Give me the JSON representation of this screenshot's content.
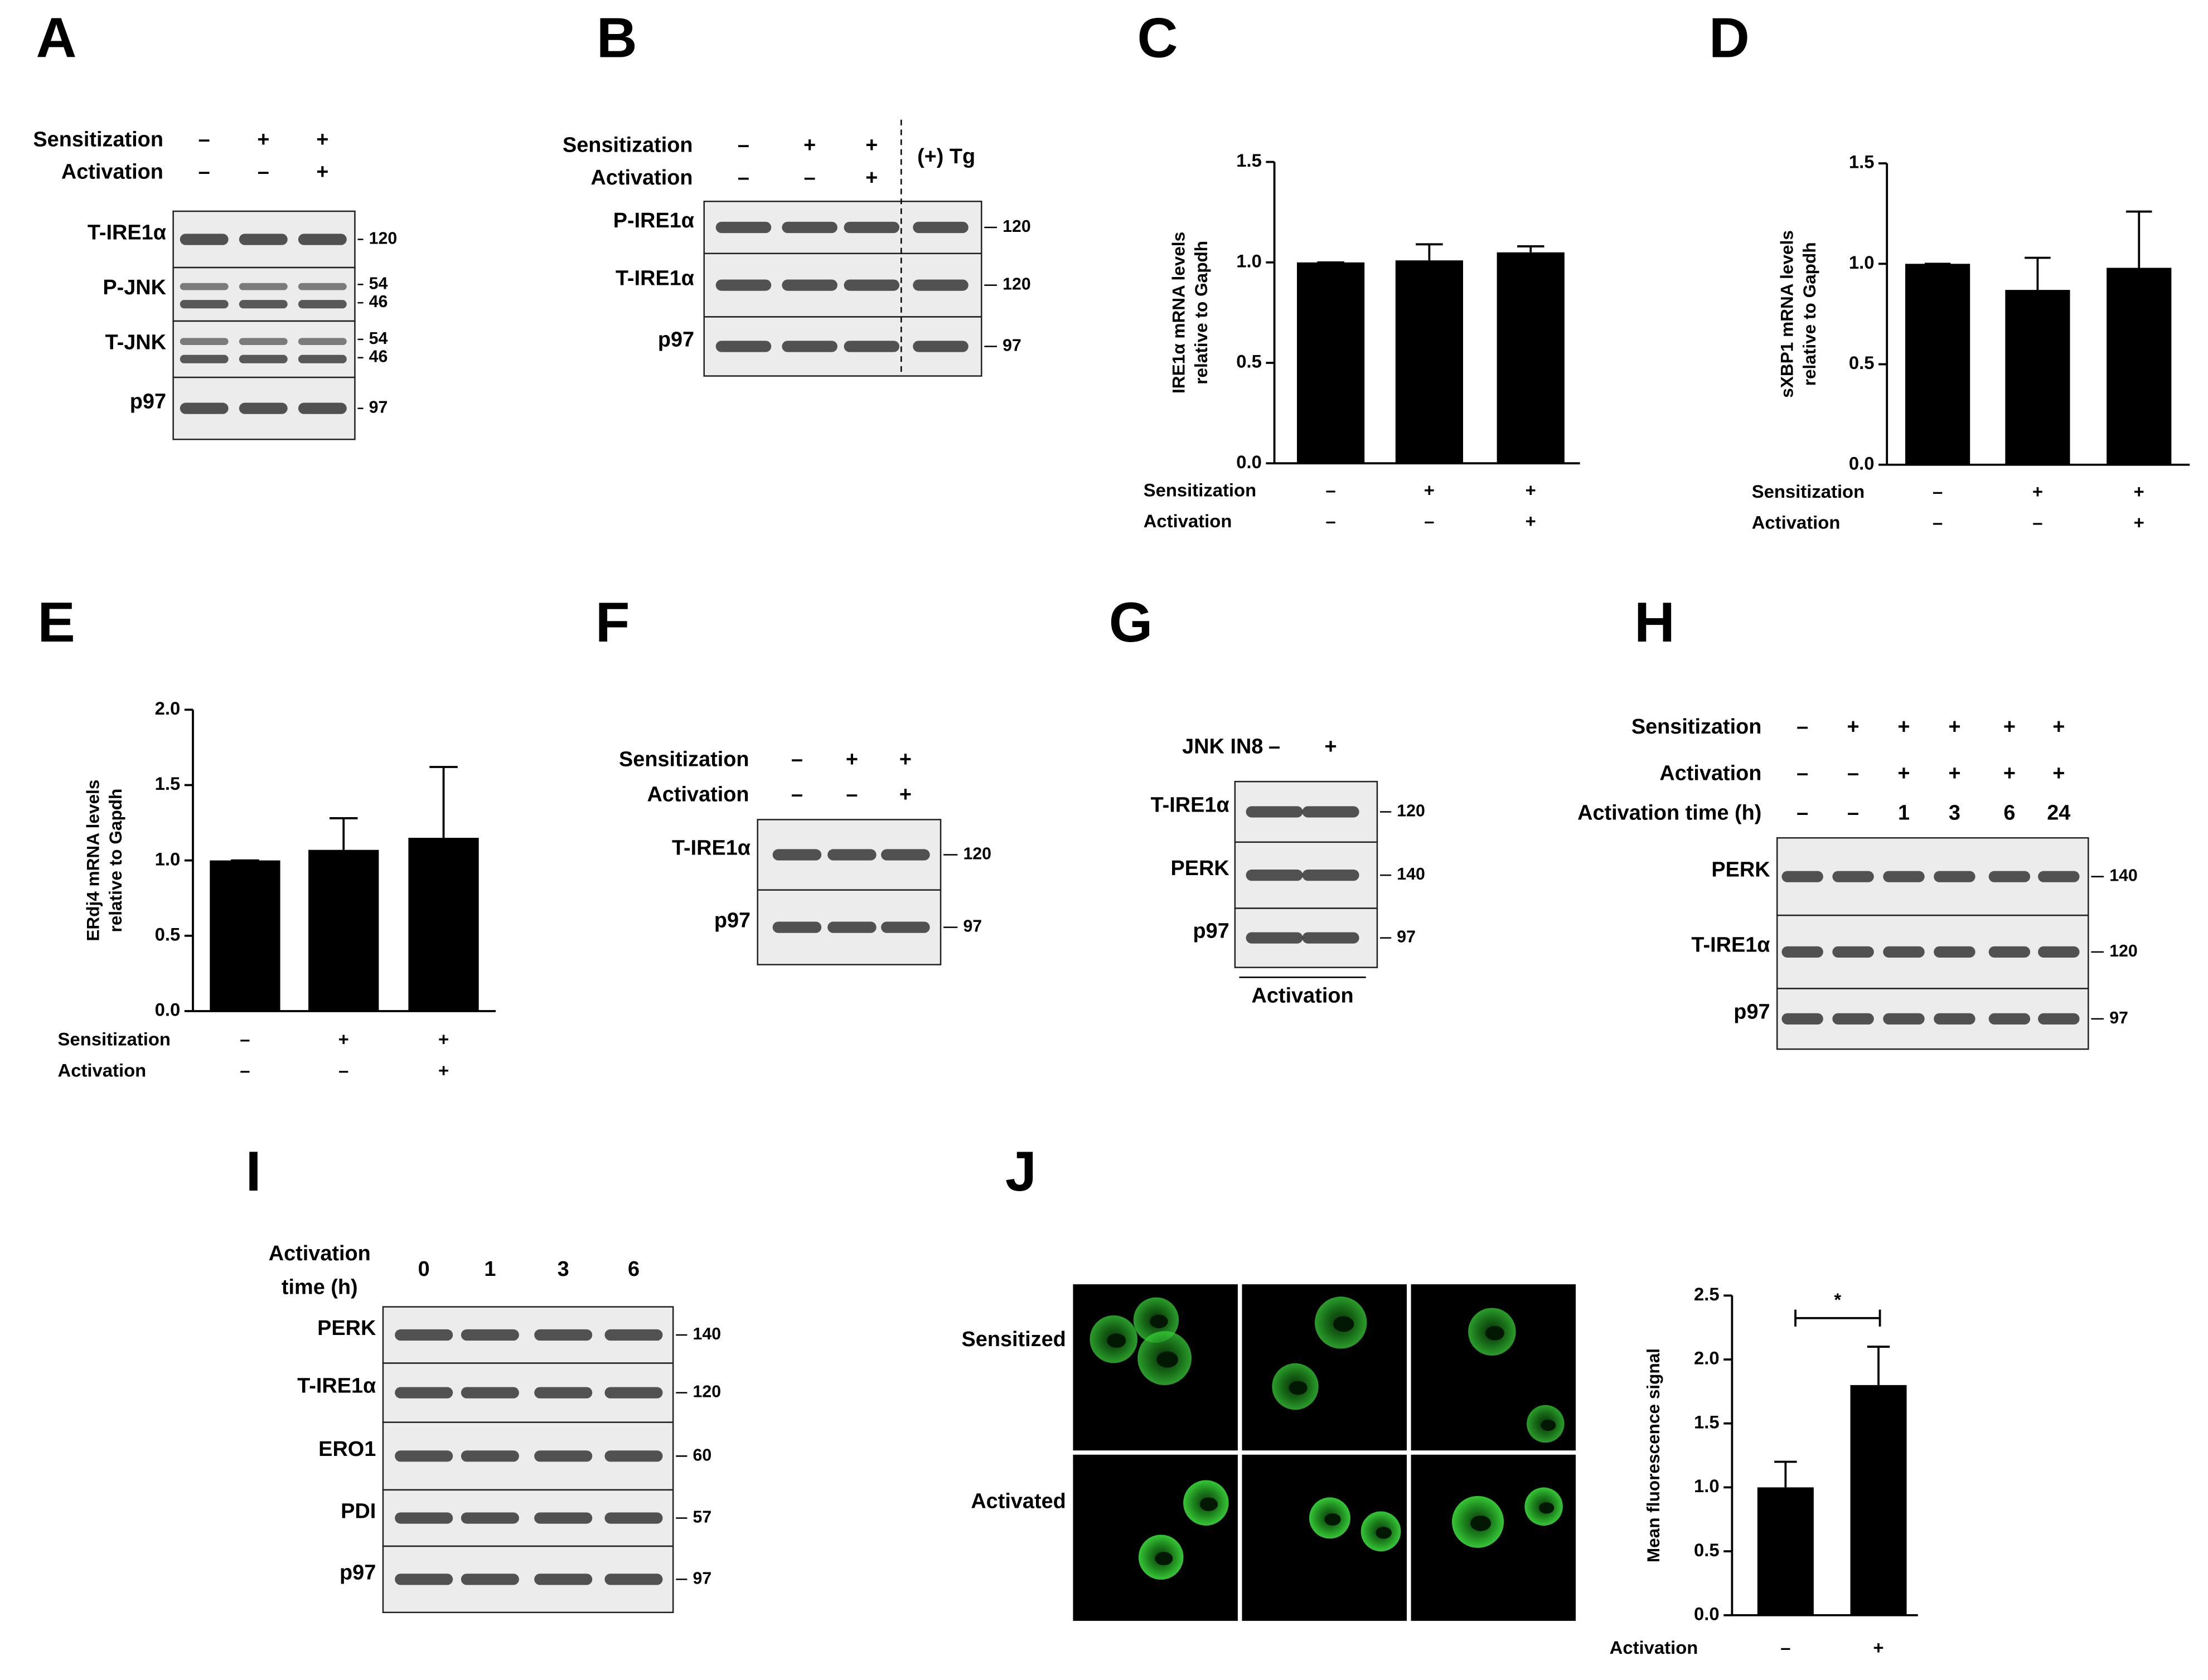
{
  "blots": [
    {
      "panel": "A",
      "conditions": [
        {
          "label": "Sensitization",
          "signs": [
            "–",
            "+",
            "+"
          ]
        },
        {
          "label": "Activation",
          "signs": [
            "–",
            "–",
            "+"
          ]
        }
      ],
      "rows": [
        {
          "label": "T-IRE1α",
          "markers": [
            "120"
          ]
        },
        {
          "label": "P-JNK",
          "markers": [
            "54",
            "46"
          ]
        },
        {
          "label": "T-JNK",
          "markers": [
            "54",
            "46"
          ]
        },
        {
          "label": "p97",
          "markers": [
            "97"
          ]
        }
      ]
    },
    {
      "panel": "B",
      "conditions": [
        {
          "label": "Sensitization",
          "signs": [
            "–",
            "+",
            "+"
          ]
        },
        {
          "label": "Activation",
          "signs": [
            "–",
            "–",
            "+"
          ]
        }
      ],
      "extra_lane": "(+) Tg",
      "rows": [
        {
          "label": "P-IRE1α",
          "markers": [
            "120"
          ]
        },
        {
          "label": "T-IRE1α",
          "markers": [
            "120"
          ]
        },
        {
          "label": "p97",
          "markers": [
            "97"
          ]
        }
      ]
    },
    {
      "panel": "F",
      "conditions": [
        {
          "label": "Sensitization",
          "signs": [
            "–",
            "+",
            "+"
          ]
        },
        {
          "label": "Activation",
          "signs": [
            "–",
            "–",
            "+"
          ]
        }
      ],
      "rows": [
        {
          "label": "T-IRE1α",
          "markers": [
            "120"
          ]
        },
        {
          "label": "p97",
          "markers": [
            "97"
          ]
        }
      ]
    },
    {
      "panel": "G",
      "conditions": [
        {
          "label": "JNK IN8",
          "signs": [
            "–",
            "+"
          ]
        }
      ],
      "footer": "Activation",
      "rows": [
        {
          "label": "T-IRE1α",
          "markers": [
            "120"
          ]
        },
        {
          "label": "PERK",
          "markers": [
            "140"
          ]
        },
        {
          "label": "p97",
          "markers": [
            "97"
          ]
        }
      ]
    },
    {
      "panel": "H",
      "conditions": [
        {
          "label": "Sensitization",
          "signs": [
            "–",
            "+",
            "+",
            "+",
            "+",
            "+"
          ]
        },
        {
          "label": "Activation",
          "signs": [
            "–",
            "–",
            "+",
            "+",
            "+",
            "+"
          ]
        },
        {
          "label": "Activation time (h)",
          "signs": [
            "–",
            "–",
            "1",
            "3",
            "6",
            "24"
          ]
        }
      ],
      "rows": [
        {
          "label": "PERK",
          "markers": [
            "140"
          ]
        },
        {
          "label": "T-IRE1α",
          "markers": [
            "120"
          ]
        },
        {
          "label": "p97",
          "markers": [
            "97"
          ]
        }
      ]
    },
    {
      "panel": "I",
      "conditions": [
        {
          "label": [
            "Activation",
            "time (h)"
          ],
          "signs": [
            "0",
            "1",
            "3",
            "6"
          ]
        }
      ],
      "rows": [
        {
          "label": "PERK",
          "markers": [
            "140"
          ]
        },
        {
          "label": "T-IRE1α",
          "markers": [
            "120"
          ]
        },
        {
          "label": "ERO1",
          "markers": [
            "60"
          ]
        },
        {
          "label": "PDI",
          "markers": [
            "57"
          ]
        },
        {
          "label": "p97",
          "markers": [
            "97"
          ]
        }
      ]
    }
  ],
  "micrographs": {
    "row_labels": [
      "Sensitized",
      "Activated"
    ]
  },
  "chart_data": [
    {
      "type": "bar",
      "panel": "C",
      "ylabel": [
        "IRE1α mRNA levels",
        "relative to Gapdh"
      ],
      "conditions": [
        {
          "label": "Sensitization",
          "signs": [
            "–",
            "+",
            "+"
          ]
        },
        {
          "label": "Activation",
          "signs": [
            "–",
            "–",
            "+"
          ]
        }
      ],
      "values": [
        1.0,
        1.01,
        1.05
      ],
      "errors": [
        0,
        0.08,
        0.03
      ],
      "color": "#000000",
      "ylim": [
        0,
        1.5
      ],
      "yticks": [
        {
          "value": 0,
          "label": "0.0"
        },
        {
          "value": 0.5,
          "label": "0.5"
        },
        {
          "value": 1,
          "label": "1.0"
        },
        {
          "value": 1.5,
          "label": "1.5"
        }
      ]
    },
    {
      "type": "bar",
      "panel": "D",
      "ylabel": [
        "sXBP1 mRNA levels",
        "relative to Gapdh"
      ],
      "conditions": [
        {
          "label": "Sensitization",
          "signs": [
            "–",
            "+",
            "+"
          ]
        },
        {
          "label": "Activation",
          "signs": [
            "–",
            "–",
            "+"
          ]
        }
      ],
      "values": [
        1.0,
        0.87,
        0.98
      ],
      "errors": [
        0,
        0.16,
        0.28
      ],
      "color": "#000000",
      "ylim": [
        0,
        1.5
      ],
      "yticks": [
        {
          "value": 0,
          "label": "0.0"
        },
        {
          "value": 0.5,
          "label": "0.5"
        },
        {
          "value": 1,
          "label": "1.0"
        },
        {
          "value": 1.5,
          "label": "1.5"
        }
      ]
    },
    {
      "type": "bar",
      "panel": "E",
      "ylabel": [
        "ERdj4 mRNA levels",
        "relative to Gapdh"
      ],
      "conditions": [
        {
          "label": "Sensitization",
          "signs": [
            "–",
            "+",
            "+"
          ]
        },
        {
          "label": "Activation",
          "signs": [
            "–",
            "–",
            "+"
          ]
        }
      ],
      "values": [
        1.0,
        1.07,
        1.15
      ],
      "errors": [
        0,
        0.21,
        0.47
      ],
      "color": "#000000",
      "ylim": [
        0,
        2
      ],
      "yticks": [
        {
          "value": 0,
          "label": "0.0"
        },
        {
          "value": 0.5,
          "label": "0.5"
        },
        {
          "value": 1,
          "label": "1.0"
        },
        {
          "value": 1.5,
          "label": "1.5"
        },
        {
          "value": 2,
          "label": "2.0"
        }
      ]
    },
    {
      "type": "bar",
      "panel": "J",
      "ylabel": [
        "Mean fluorescence signal"
      ],
      "conditions": [
        {
          "label": "Activation",
          "signs": [
            "–",
            "+"
          ]
        }
      ],
      "values": [
        1.0,
        1.8
      ],
      "errors": [
        0.2,
        0.3
      ],
      "color": "#000000",
      "significance": "*",
      "ylim": [
        0,
        2.5
      ],
      "yticks": [
        {
          "value": 0,
          "label": "0.0"
        },
        {
          "value": 0.5,
          "label": "0.5"
        },
        {
          "value": 1,
          "label": "1.0"
        },
        {
          "value": 1.5,
          "label": "1.5"
        },
        {
          "value": 2,
          "label": "2.0"
        },
        {
          "value": 2.5,
          "label": "2.5"
        }
      ]
    }
  ]
}
